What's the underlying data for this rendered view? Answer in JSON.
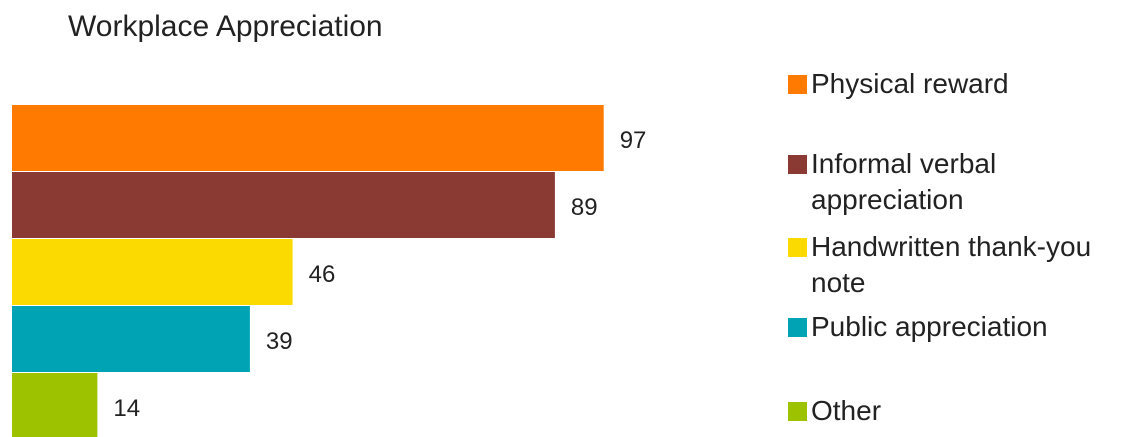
{
  "chart_data": {
    "type": "bar",
    "orientation": "horizontal",
    "title": "Workplace Appreciation",
    "xlabel": "",
    "ylabel": "",
    "xlim": [
      0,
      100
    ],
    "grid": false,
    "legend_position": "right",
    "categories": [
      "Physical reward",
      "Informal verbal appreciation",
      "Handwritten thank-you note",
      "Public appreciation",
      "Other"
    ],
    "values": [
      97,
      89,
      46,
      39,
      14
    ],
    "colors": [
      "#FF7A00",
      "#8B3A33",
      "#FADA00",
      "#00A3B4",
      "#9DC300"
    ],
    "data_labels": [
      "97",
      "89",
      "46",
      "39",
      "14"
    ]
  },
  "legend": {
    "items": [
      {
        "label": "Physical reward",
        "color": "#FF7A00"
      },
      {
        "label": "Informal verbal appreciation",
        "color": "#8B3A33"
      },
      {
        "label": "Handwritten thank-you note",
        "color": "#FADA00"
      },
      {
        "label": "Public appreciation",
        "color": "#00A3B4"
      },
      {
        "label": "Other",
        "color": "#9DC300"
      }
    ]
  }
}
